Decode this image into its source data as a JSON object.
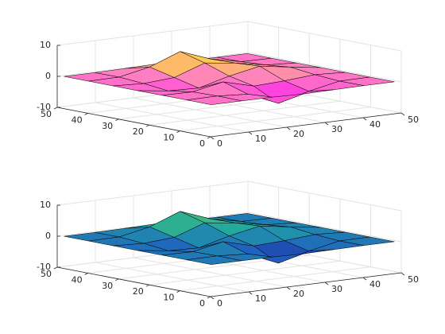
{
  "chart_data": [
    {
      "type": "surface",
      "x": [
        1,
        9,
        17,
        25,
        33,
        41,
        49
      ],
      "y": [
        1,
        9,
        17,
        25,
        33,
        41,
        49
      ],
      "z": [
        [
          0.0,
          0.003,
          -0.03,
          -0.245,
          -0.11,
          -0.005,
          0.0
        ],
        [
          0.001,
          0.047,
          -0.592,
          -4.759,
          -2.102,
          -0.062,
          0.0
        ],
        [
          -0.009,
          -0.13,
          1.856,
          -0.724,
          -0.273,
          0.5,
          0.013
        ],
        [
          -0.037,
          -1.333,
          -1.652,
          0.981,
          2.937,
          1.412,
          0.033
        ],
        [
          -0.013,
          -0.481,
          0.229,
          3.689,
          2.434,
          0.581,
          0.012
        ],
        [
          0.0,
          0.08,
          2.097,
          5.859,
          2.21,
          0.133,
          0.001
        ],
        [
          0.0,
          0.006,
          0.11,
          0.3,
          0.111,
          0.006,
          0.0
        ]
      ],
      "xlim": [
        0,
        50
      ],
      "ylim": [
        0,
        50
      ],
      "zlim": [
        -10,
        10
      ],
      "xticks": [
        0,
        10,
        20,
        30,
        40,
        50
      ],
      "yticks": [
        0,
        10,
        20,
        30,
        40,
        50
      ],
      "zticks": [
        -10,
        0,
        10
      ],
      "grid": true,
      "colormap": [
        "#ff00ff",
        "#ff80c0",
        "#ffff00"
      ]
    },
    {
      "type": "surface",
      "x": [
        1,
        9,
        17,
        25,
        33,
        41,
        49
      ],
      "y": [
        1,
        9,
        17,
        25,
        33,
        41,
        49
      ],
      "z": [
        [
          0.0,
          0.003,
          -0.03,
          -0.245,
          -0.11,
          -0.005,
          0.0
        ],
        [
          0.001,
          0.047,
          -0.592,
          -4.759,
          -2.102,
          -0.062,
          0.0
        ],
        [
          -0.009,
          -0.13,
          1.856,
          -0.724,
          -0.273,
          0.5,
          0.013
        ],
        [
          -0.037,
          -1.333,
          -1.652,
          0.981,
          2.937,
          1.412,
          0.033
        ],
        [
          -0.013,
          -0.481,
          0.229,
          3.689,
          2.434,
          0.581,
          0.012
        ],
        [
          0.0,
          0.08,
          2.097,
          5.859,
          2.21,
          0.133,
          0.001
        ],
        [
          0.0,
          0.006,
          0.11,
          0.3,
          0.111,
          0.006,
          0.0
        ]
      ],
      "xlim": [
        0,
        50
      ],
      "ylim": [
        0,
        50
      ],
      "zlim": [
        -10,
        10
      ],
      "xticks": [
        0,
        10,
        20,
        30,
        40,
        50
      ],
      "yticks": [
        0,
        10,
        20,
        30,
        40,
        50
      ],
      "zticks": [
        -10,
        0,
        10
      ],
      "grid": true,
      "colormap": [
        "#1a1080",
        "#2060c0",
        "#20a8a0",
        "#70d050"
      ]
    }
  ]
}
